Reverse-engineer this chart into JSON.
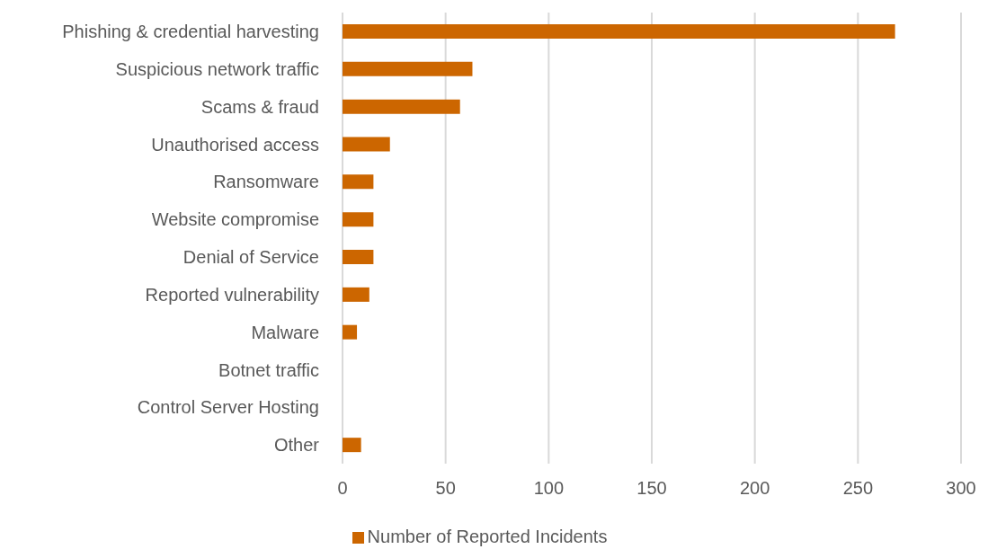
{
  "chart_data": {
    "type": "bar",
    "orientation": "horizontal",
    "categories": [
      "Phishing & credential harvesting",
      "Suspicious network traffic",
      "Scams & fraud",
      "Unauthorised access",
      "Ransomware",
      "Website compromise",
      "Denial of Service",
      "Reported vulnerability",
      "Malware",
      "Botnet traffic",
      "Control Server Hosting",
      "Other"
    ],
    "series": [
      {
        "name": "Number of Reported Incidents",
        "color": "#cc6600",
        "values": [
          268,
          63,
          57,
          23,
          15,
          15,
          15,
          13,
          7,
          0,
          0,
          9
        ]
      }
    ],
    "xlim": [
      0,
      300
    ],
    "xticks": [
      0,
      50,
      100,
      150,
      200,
      250,
      300
    ],
    "grid": "x",
    "legend": "bottom"
  }
}
